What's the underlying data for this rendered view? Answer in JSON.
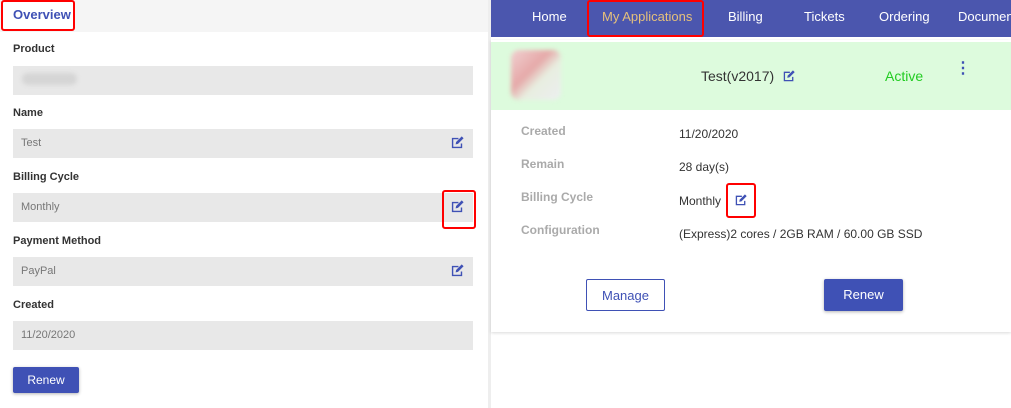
{
  "left_panel": {
    "tab": "Overview",
    "fields": [
      {
        "label": "Product",
        "value": "",
        "editable": false
      },
      {
        "label": "Name",
        "value": "Test",
        "editable": true
      },
      {
        "label": "Billing Cycle",
        "value": "Monthly",
        "editable": true
      },
      {
        "label": "Payment Method",
        "value": "PayPal",
        "editable": true
      },
      {
        "label": "Created",
        "value": "11/20/2020",
        "editable": false
      }
    ],
    "renew_label": "Renew"
  },
  "nav": {
    "items": [
      "Home",
      "My Applications",
      "Billing",
      "Tickets",
      "Ordering",
      "Documen"
    ],
    "active": "My Applications"
  },
  "card": {
    "title": "Test(v2017)",
    "status": "Active",
    "status_color": "#22cc22",
    "rows": [
      {
        "label": "Created",
        "value": "11/20/2020"
      },
      {
        "label": "Remain",
        "value": "28 day(s)"
      },
      {
        "label": "Billing Cycle",
        "value": "Monthly"
      },
      {
        "label": "Configuration",
        "value": "(Express)2 cores / 2GB RAM / 60.00 GB SSD"
      }
    ],
    "manage_label": "Manage",
    "renew_label": "Renew"
  },
  "colors": {
    "primary": "#3f51b5",
    "nav": "#4b56ae",
    "active_nav": "#e5c07b",
    "highlight": "#ff0000"
  }
}
